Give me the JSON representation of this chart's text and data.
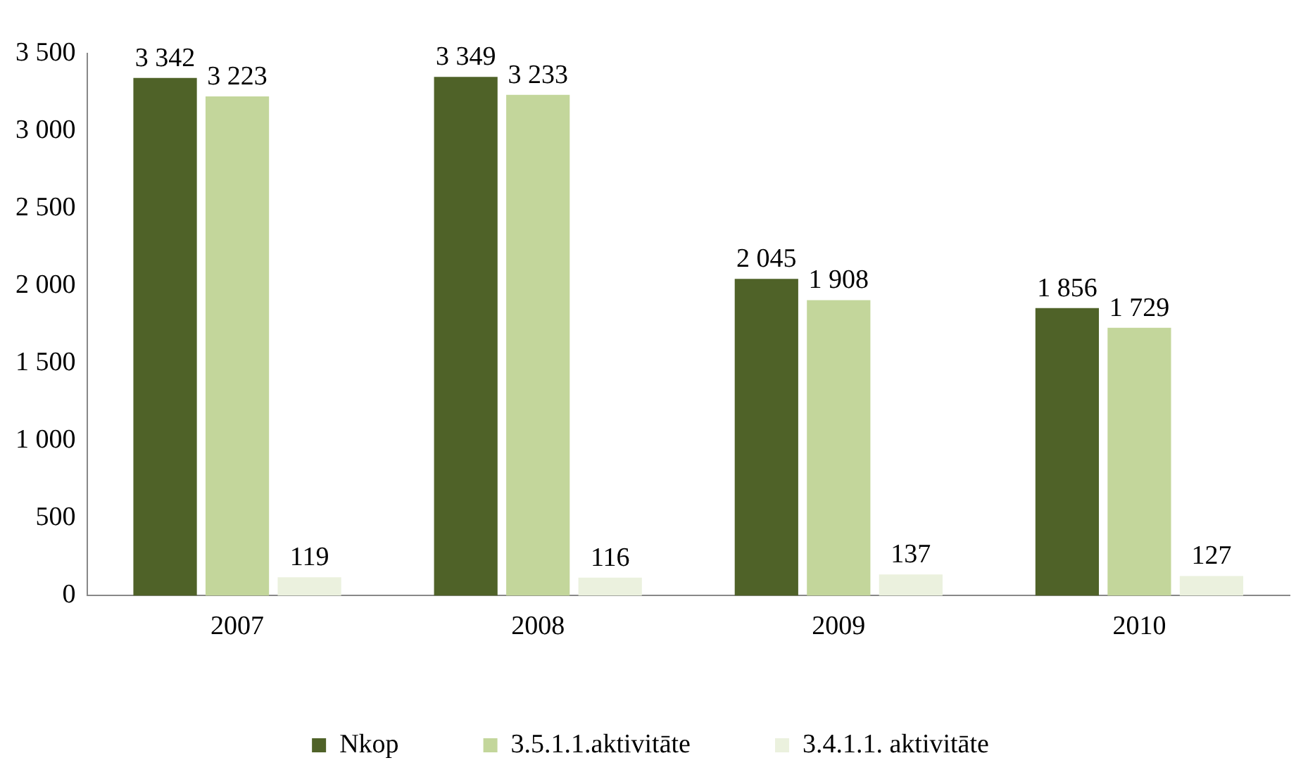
{
  "chart_data": {
    "type": "bar",
    "categories": [
      "2007",
      "2008",
      "2009",
      "2010"
    ],
    "series": [
      {
        "name": "Nkop",
        "color": "#4f6228",
        "values": [
          3342,
          3349,
          2045,
          1856
        ],
        "value_labels": [
          "3 342",
          "3 349",
          "2 045",
          "1 856"
        ]
      },
      {
        "name": "3.5.1.1.aktivitāte",
        "color": "#c3d69b",
        "values": [
          3223,
          3233,
          1908,
          1729
        ],
        "value_labels": [
          "3 223",
          "3 233",
          "1 908",
          "1 729"
        ]
      },
      {
        "name": "3.4.1.1. aktivitāte",
        "color": "#ebf1de",
        "values": [
          119,
          116,
          137,
          127
        ],
        "value_labels": [
          "119",
          "116",
          "137",
          "127"
        ]
      }
    ],
    "ylim": [
      0,
      3500
    ],
    "yticks": [
      0,
      500,
      {
        "value": 1000,
        "label": "1 000"
      },
      {
        "value": 1500,
        "label": "1 500"
      },
      {
        "value": 2000,
        "label": "2 000"
      },
      {
        "value": 2500,
        "label": "2 500"
      },
      {
        "value": 3000,
        "label": "3 000"
      },
      {
        "value": 3500,
        "label": "3 500"
      }
    ],
    "grid": false,
    "legend": "bottom"
  }
}
